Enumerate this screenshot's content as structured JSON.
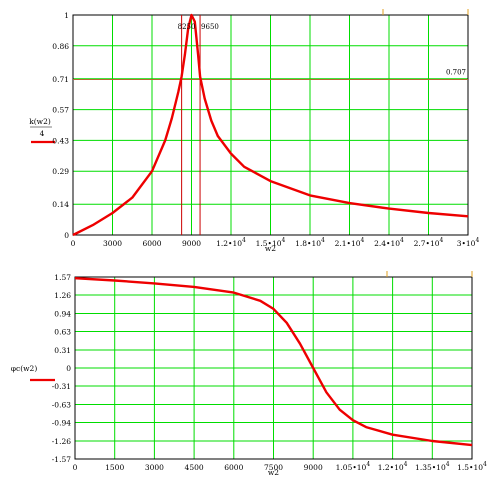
{
  "colors": {
    "grid": "#00dd00",
    "curve": "#ee0000",
    "ref_line": "#b36b2e",
    "marker": "#cc0000",
    "frame": "#000000"
  },
  "chart_data": [
    {
      "type": "line",
      "ylabel_num": "k(w2)",
      "ylabel_den": "4",
      "xlabel": "w2",
      "xlim": [
        0,
        30000
      ],
      "ylim": [
        0,
        1
      ],
      "x_ticks": [
        "0",
        "3000",
        "6000",
        "9000",
        "1.2•10",
        "1.5•10",
        "1.8•10",
        "2.1•10",
        "2.4•10",
        "2.7•10",
        "3•10"
      ],
      "x_tick_exp": "4",
      "x_tick_values": [
        0,
        3000,
        6000,
        9000,
        12000,
        15000,
        18000,
        21000,
        24000,
        27000,
        30000
      ],
      "y_ticks": [
        "0",
        "0.14",
        "0.29",
        "0.43",
        "0.57",
        "0.71",
        "0.86",
        "1"
      ],
      "y_tick_values": [
        0,
        0.14,
        0.29,
        0.43,
        0.57,
        0.71,
        0.86,
        1
      ],
      "ref_level": 0.707,
      "ref_label": "0.707",
      "markers": [
        8250,
        9650
      ],
      "marker_labels": [
        "8250",
        "9650"
      ],
      "x": [
        0,
        1500,
        3000,
        4500,
        6000,
        7000,
        7500,
        8000,
        8250,
        8500,
        8750,
        9000,
        9250,
        9500,
        9650,
        10000,
        10500,
        11000,
        12000,
        13000,
        15000,
        18000,
        21000,
        24000,
        27000,
        30000
      ],
      "y": [
        0.0,
        0.045,
        0.1,
        0.17,
        0.29,
        0.43,
        0.53,
        0.65,
        0.72,
        0.82,
        0.94,
        1.0,
        0.97,
        0.82,
        0.72,
        0.62,
        0.52,
        0.45,
        0.37,
        0.31,
        0.245,
        0.18,
        0.145,
        0.12,
        0.1,
        0.085
      ]
    },
    {
      "type": "line",
      "ylabel": "φc(w2)",
      "xlabel": "w2",
      "xlim": [
        0,
        15000
      ],
      "ylim": [
        -1.57,
        1.57
      ],
      "x_ticks": [
        "0",
        "1500",
        "3000",
        "4500",
        "6000",
        "7500",
        "9000",
        "1.05•10",
        "1.2•10",
        "1.35•10",
        "1.5•10"
      ],
      "x_tick_exp": "4",
      "x_tick_values": [
        0,
        1500,
        3000,
        4500,
        6000,
        7500,
        9000,
        10500,
        12000,
        13500,
        15000
      ],
      "y_ticks": [
        "1.57",
        "1.26",
        "0.94",
        "0.63",
        "0.31",
        "0",
        "-0.31",
        "-0.63",
        "-0.94",
        "-1.26",
        "-1.57"
      ],
      "y_tick_values": [
        1.57,
        1.26,
        0.94,
        0.63,
        0.31,
        0,
        -0.31,
        -0.63,
        -0.94,
        -1.26,
        -1.57
      ],
      "x": [
        0,
        1500,
        3000,
        4500,
        6000,
        7000,
        7500,
        8000,
        8500,
        9000,
        9500,
        10000,
        10500,
        11000,
        12000,
        13500,
        15000
      ],
      "y": [
        1.55,
        1.51,
        1.46,
        1.4,
        1.3,
        1.16,
        1.02,
        0.78,
        0.42,
        0.0,
        -0.42,
        -0.72,
        -0.9,
        -1.02,
        -1.15,
        -1.26,
        -1.33
      ]
    }
  ]
}
